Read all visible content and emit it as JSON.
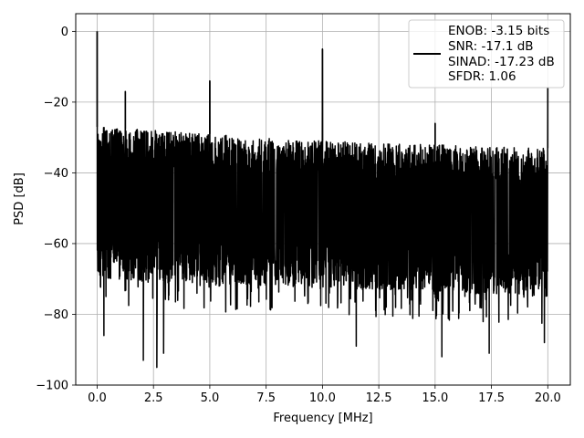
{
  "chart_data": {
    "type": "line",
    "title": "",
    "xlabel": "Frequency [MHz]",
    "ylabel": "PSD [dB]",
    "xlim": [
      -0.95,
      21.0
    ],
    "ylim": [
      -100,
      5
    ],
    "xticks": [
      0.0,
      2.5,
      5.0,
      7.5,
      10.0,
      12.5,
      15.0,
      17.5,
      20.0
    ],
    "xtick_labels": [
      "0.0",
      "2.5",
      "5.0",
      "7.5",
      "10.0",
      "12.5",
      "15.0",
      "17.5",
      "20.0"
    ],
    "yticks": [
      0,
      -20,
      -40,
      -60,
      -80,
      -100
    ],
    "ytick_labels": [
      "0",
      "−20",
      "−40",
      "−60",
      "−80",
      "−100"
    ],
    "grid": true,
    "legend": {
      "placement": "top-right",
      "entries": [
        "ENOB: -3.15 bits",
        "SNR: -17.1 dB",
        "SINAD: -17.23 dB",
        "SFDR: 1.06"
      ]
    },
    "series": [
      {
        "color": "#000000",
        "noise_floor_top": [
          [
            0.0,
            -27
          ],
          [
            5.0,
            -29
          ],
          [
            10.0,
            -31
          ],
          [
            15.0,
            -32
          ],
          [
            20.0,
            -33
          ]
        ],
        "noise_floor_bottom": [
          [
            0.0,
            -70
          ],
          [
            20.0,
            -75
          ]
        ],
        "peaks": [
          {
            "x": 0.0,
            "y": 0
          },
          {
            "x": 1.25,
            "y": -17
          },
          {
            "x": 5.0,
            "y": -14
          },
          {
            "x": 10.0,
            "y": -5
          },
          {
            "x": 15.0,
            "y": -26
          },
          {
            "x": 20.0,
            "y": -16
          }
        ],
        "deep_dips": [
          {
            "x": 0.3,
            "y": -86
          },
          {
            "x": 2.05,
            "y": -93
          },
          {
            "x": 2.65,
            "y": -95
          },
          {
            "x": 2.95,
            "y": -91
          },
          {
            "x": 11.5,
            "y": -89
          },
          {
            "x": 15.3,
            "y": -92
          },
          {
            "x": 17.4,
            "y": -91
          },
          {
            "x": 19.85,
            "y": -88
          }
        ]
      }
    ]
  }
}
